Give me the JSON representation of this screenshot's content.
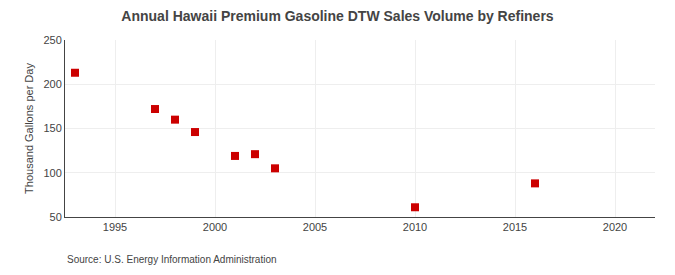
{
  "chart_data": {
    "type": "scatter",
    "title": "Annual Hawaii Premium Gasoline DTW Sales Volume by Refiners",
    "ylabel": "Thousand Gallons per Day",
    "annotation": "Source: U.S. Energy Information Administration",
    "x": [
      1993,
      1997,
      1998,
      1999,
      2001,
      2002,
      2003,
      2010,
      2016
    ],
    "values": [
      213,
      172,
      160,
      146,
      119,
      121,
      105,
      61,
      88
    ],
    "xlim": [
      1992.5,
      2022
    ],
    "ylim": [
      50,
      250
    ],
    "xticks": [
      1995,
      2000,
      2005,
      2010,
      2015,
      2020
    ],
    "yticks": [
      50,
      100,
      150,
      200,
      250
    ],
    "color": "#cc0000",
    "marker": "square",
    "grid": true
  }
}
